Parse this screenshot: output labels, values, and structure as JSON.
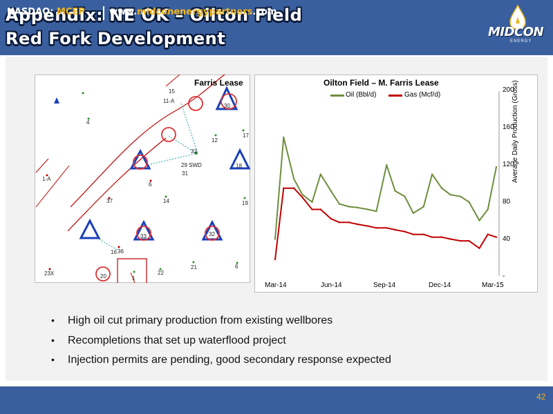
{
  "header": {
    "title_line1": "Appendix: NE OK – Oilton Field",
    "title_line2": "Red Fork Development",
    "logo_text": "MIDCON",
    "logo_sub": "ENERGY"
  },
  "map": {
    "lease_label": "Farris Lease",
    "well_labels": [
      "15",
      "11-A",
      "30",
      "4",
      "12",
      "17",
      "32",
      "29 SWD",
      "31",
      "18",
      "1-A",
      "6",
      "37",
      "14",
      "19",
      "33",
      "32",
      "16",
      "36",
      "21",
      "6",
      "23X",
      "20",
      "1",
      "22"
    ]
  },
  "chart_data": {
    "type": "line",
    "title": "Oilton Field – M. Farris Lease",
    "xlabel": "",
    "ylabel": "Average Daily Production (Gross)",
    "x_tick_labels": [
      "Mar-14",
      "Jun-14",
      "Sep-14",
      "Dec-14",
      "Mar-15"
    ],
    "y_tick_labels": [
      "-",
      "40",
      "80",
      "120",
      "160",
      "200"
    ],
    "ylim": [
      0,
      200
    ],
    "y_axis_side": "right",
    "legend_position": "top",
    "x": [
      "2014-03-01",
      "2014-03-15",
      "2014-04-01",
      "2014-04-15",
      "2014-05-01",
      "2014-05-15",
      "2014-06-01",
      "2014-06-15",
      "2014-07-01",
      "2014-07-15",
      "2014-08-01",
      "2014-08-15",
      "2014-09-01",
      "2014-09-15",
      "2014-10-01",
      "2014-10-15",
      "2014-11-01",
      "2014-11-15",
      "2014-12-01",
      "2014-12-15",
      "2015-01-01",
      "2015-01-15",
      "2015-02-01",
      "2015-02-15",
      "2015-03-01"
    ],
    "series": [
      {
        "name": "Oil (Bbl/d)",
        "color": "#6e8d3c",
        "values": [
          40,
          150,
          105,
          88,
          80,
          110,
          92,
          78,
          75,
          74,
          72,
          70,
          120,
          92,
          86,
          68,
          75,
          110,
          95,
          88,
          86,
          80,
          60,
          72,
          118
        ]
      },
      {
        "name": "Gas (Mcf/d)",
        "color": "#c00000",
        "values": [
          18,
          95,
          95,
          85,
          72,
          72,
          62,
          58,
          58,
          56,
          54,
          52,
          52,
          50,
          48,
          45,
          45,
          42,
          42,
          40,
          38,
          38,
          30,
          45,
          42
        ]
      }
    ]
  },
  "bullets": [
    "High oil cut primary production from existing wellbores",
    "Recompletions that set up waterflood project",
    "Injection permits are pending, good secondary response expected"
  ],
  "footer": {
    "nasdaq_label": "NASDAQ: ",
    "ticker": "MCEP",
    "url_prefix": "www.",
    "url_brand": "midconenergypartners",
    "url_suffix": ".com",
    "page_number": "42"
  }
}
